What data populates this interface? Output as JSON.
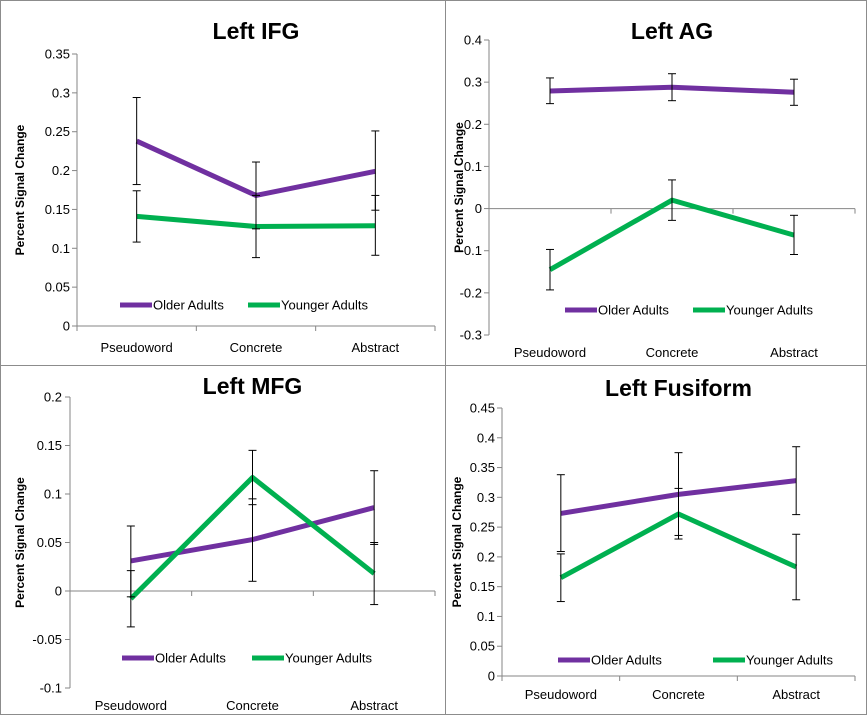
{
  "chart_data": [
    {
      "type": "line",
      "title": "Left IFG",
      "ylabel": "Percent Signal Change",
      "categories": [
        "Pseudoword",
        "Concrete",
        "Abstract"
      ],
      "ylim": [
        0,
        0.35
      ],
      "yticks": [
        "0",
        "0.05",
        "0.1",
        "0.15",
        "0.2",
        "0.25",
        "0.3",
        "0.35"
      ],
      "series": [
        {
          "name": "Older Adults",
          "color": "#7030a0",
          "values": [
            0.238,
            0.168,
            0.199
          ],
          "err_low": [
            0.182,
            0.125,
            0.149
          ],
          "err_high": [
            0.294,
            0.211,
            0.251
          ]
        },
        {
          "name": "Younger Adults",
          "color": "#00b050",
          "values": [
            0.141,
            0.128,
            0.129
          ],
          "err_low": [
            0.108,
            0.088,
            0.091
          ],
          "err_high": [
            0.174,
            0.168,
            0.168
          ]
        }
      ],
      "legend": "bottom",
      "grid": false
    },
    {
      "type": "line",
      "title": "Left AG",
      "ylabel": "Percent Signal Change",
      "categories": [
        "Pseudoword",
        "Concrete",
        "Abstract"
      ],
      "ylim": [
        -0.3,
        0.4
      ],
      "yticks": [
        "-0.3",
        "-0.2",
        "-0.1",
        "0",
        "0.1",
        "0.2",
        "0.3",
        "0.4"
      ],
      "series": [
        {
          "name": "Older Adults",
          "color": "#7030a0",
          "values": [
            0.279,
            0.288,
            0.276
          ],
          "err_low": [
            0.249,
            0.256,
            0.245
          ],
          "err_high": [
            0.31,
            0.32,
            0.307
          ]
        },
        {
          "name": "Younger Adults",
          "color": "#00b050",
          "values": [
            -0.145,
            0.02,
            -0.063
          ],
          "err_low": [
            -0.193,
            -0.028,
            -0.109
          ],
          "err_high": [
            -0.097,
            0.068,
            -0.016
          ]
        }
      ],
      "legend": "bottom",
      "grid": false
    },
    {
      "type": "line",
      "title": "Left MFG",
      "ylabel": "Percent Signal Change",
      "categories": [
        "Pseudoword",
        "Concrete",
        "Abstract"
      ],
      "ylim": [
        -0.1,
        0.2
      ],
      "yticks": [
        "-0.1",
        "-0.05",
        "0",
        "0.05",
        "0.1",
        "0.15",
        "0.2"
      ],
      "series": [
        {
          "name": "Older Adults",
          "color": "#7030a0",
          "values": [
            0.031,
            0.053,
            0.086
          ],
          "err_low": [
            -0.006,
            0.01,
            0.048
          ],
          "err_high": [
            0.067,
            0.095,
            0.124
          ]
        },
        {
          "name": "Younger Adults",
          "color": "#00b050",
          "values": [
            -0.008,
            0.117,
            0.018
          ],
          "err_low": [
            -0.037,
            0.089,
            -0.014
          ],
          "err_high": [
            0.021,
            0.145,
            0.05
          ]
        }
      ],
      "legend": "bottom",
      "grid": false
    },
    {
      "type": "line",
      "title": "Left Fusiform",
      "ylabel": "Percent Signal Change",
      "categories": [
        "Pseudoword",
        "Concrete",
        "Abstract"
      ],
      "ylim": [
        0,
        0.45
      ],
      "yticks": [
        "0",
        "0.05",
        "0.1",
        "0.15",
        "0.2",
        "0.25",
        "0.3",
        "0.35",
        "0.4",
        "0.45"
      ],
      "series": [
        {
          "name": "Older Adults",
          "color": "#7030a0",
          "values": [
            0.273,
            0.305,
            0.328
          ],
          "err_low": [
            0.209,
            0.236,
            0.271
          ],
          "err_high": [
            0.338,
            0.375,
            0.385
          ]
        },
        {
          "name": "Younger Adults",
          "color": "#00b050",
          "values": [
            0.165,
            0.272,
            0.183
          ],
          "err_low": [
            0.125,
            0.23,
            0.128
          ],
          "err_high": [
            0.205,
            0.315,
            0.238
          ]
        }
      ],
      "legend": "bottom",
      "grid": false
    }
  ]
}
